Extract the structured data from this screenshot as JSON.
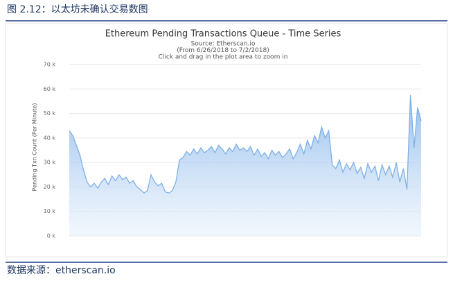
{
  "caption": "图 2.12：以太坊未确认交易数图",
  "source": "数据来源：etherscan.io",
  "chart_data": {
    "type": "area",
    "title": "Ethereum Pending Transactions Queue - Time Series",
    "subtitle": [
      "Source: Etherscan.io",
      "(From 6/26/2018 to 7/2/2018)",
      "Click and drag in the plot area to zoom in"
    ],
    "y_label": "Pending Txn Count (Per Minute)",
    "color": "#7eb0e6",
    "grid": true,
    "ylim": [
      0,
      70000
    ],
    "yticks": [
      {
        "value": 0,
        "label": "0 k"
      },
      {
        "value": 10000,
        "label": "10 k"
      },
      {
        "value": 20000,
        "label": "20 k"
      },
      {
        "value": 30000,
        "label": "30 k"
      },
      {
        "value": 40000,
        "label": "40 k"
      },
      {
        "value": 50000,
        "label": "50 k"
      },
      {
        "value": 60000,
        "label": "60 k"
      },
      {
        "value": 70000,
        "label": "70 k"
      }
    ],
    "values": [
      43000,
      41000,
      37000,
      33000,
      27000,
      22000,
      20000,
      21500,
      19500,
      22000,
      23500,
      21000,
      24500,
      22500,
      25000,
      23000,
      24000,
      21500,
      22500,
      20000,
      19000,
      17500,
      18500,
      25000,
      22000,
      20500,
      21500,
      18000,
      17500,
      18500,
      22000,
      31000,
      32000,
      34500,
      33000,
      35500,
      33500,
      36000,
      34000,
      35000,
      36500,
      34000,
      37000,
      35500,
      33500,
      36000,
      34500,
      37500,
      35000,
      36000,
      34500,
      36500,
      33000,
      35500,
      32500,
      34000,
      31500,
      35000,
      33000,
      34500,
      32000,
      33500,
      35500,
      31500,
      34000,
      37500,
      33500,
      39000,
      35500,
      41000,
      38000,
      44500,
      40000,
      43000,
      29000,
      27500,
      31000,
      26000,
      29500,
      27000,
      30000,
      25500,
      28000,
      23500,
      29500,
      26000,
      28500,
      22500,
      29000,
      25000,
      28500,
      24000,
      30000,
      22000,
      27500,
      19000,
      57500,
      36000,
      52500,
      47000
    ]
  }
}
